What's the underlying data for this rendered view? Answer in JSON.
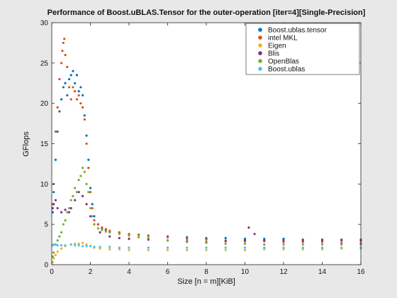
{
  "chart_data": {
    "type": "scatter",
    "title": "Performance of Boost.uBLAS.Tensor for the outer-operation [iter=4][Single-Precision]",
    "xlabel": "Size [n = m][KiB]",
    "ylabel": "GFlops",
    "xlim": [
      0,
      16
    ],
    "ylim": [
      0,
      30
    ],
    "xticks": [
      0,
      2,
      4,
      6,
      8,
      10,
      12,
      14,
      16
    ],
    "yticks": [
      0,
      5,
      10,
      15,
      20,
      25,
      30
    ],
    "grid": false,
    "legend_position": "top-right",
    "series": [
      {
        "name": "Boost.ublas.tensor",
        "color": "#0072bd",
        "x": [
          0.05,
          0.1,
          0.2,
          0.3,
          0.4,
          0.5,
          0.6,
          0.7,
          0.8,
          0.9,
          1.0,
          1.1,
          1.2,
          1.3,
          1.4,
          1.5,
          1.6,
          1.7,
          1.8,
          1.9,
          2.0,
          2.1,
          2.2,
          2.4,
          2.6,
          2.8,
          3.0,
          3.5,
          4.0,
          4.5,
          5.0,
          6.0,
          7.0,
          8.0,
          9.0,
          10.0,
          11.0,
          12.0,
          13.0,
          14.0,
          15.0,
          16.0
        ],
        "y": [
          6.5,
          9.0,
          13.0,
          16.5,
          19.0,
          20.5,
          22.0,
          22.5,
          21.0,
          23.0,
          23.5,
          24.0,
          22.5,
          23.5,
          21.5,
          22.0,
          21.0,
          18.5,
          16.0,
          13.0,
          9.5,
          7.5,
          6.0,
          5.0,
          4.5,
          4.3,
          4.1,
          3.9,
          3.8,
          3.7,
          3.6,
          3.5,
          3.4,
          3.3,
          3.3,
          3.2,
          3.2,
          3.2,
          3.1,
          3.1,
          3.1,
          3.1
        ]
      },
      {
        "name": "intel MKL",
        "color": "#d95319",
        "x": [
          0.05,
          0.1,
          0.2,
          0.3,
          0.4,
          0.5,
          0.55,
          0.6,
          0.65,
          0.7,
          0.8,
          0.9,
          1.0,
          1.1,
          1.2,
          1.3,
          1.4,
          1.5,
          1.6,
          1.7,
          1.8,
          1.9,
          2.0,
          2.1,
          2.2,
          2.4,
          2.6,
          2.8,
          3.0,
          3.5,
          4.0,
          4.5,
          5.0,
          6.0,
          7.0,
          8.0,
          9.0,
          10.0,
          11.0,
          12.0,
          13.0,
          14.0,
          15.0,
          16.0
        ],
        "y": [
          7.5,
          10.0,
          16.5,
          19.5,
          23.0,
          25.0,
          26.5,
          27.5,
          28.0,
          26.0,
          24.5,
          22.0,
          20.5,
          22.0,
          21.5,
          20.5,
          21.0,
          20.0,
          19.5,
          18.0,
          15.0,
          12.0,
          9.0,
          7.0,
          5.5,
          5.0,
          4.6,
          4.4,
          4.2,
          4.0,
          3.8,
          3.7,
          3.6,
          3.4,
          3.2,
          3.1,
          3.0,
          2.9,
          2.9,
          2.8,
          2.8,
          2.8,
          2.7,
          2.7
        ]
      },
      {
        "name": "Eigen",
        "color": "#edb120",
        "x": [
          0.05,
          0.1,
          0.2,
          0.3,
          0.5,
          0.7,
          1.0,
          1.2,
          1.4,
          1.6,
          1.8,
          2.0,
          2.2,
          2.5,
          3.0,
          3.5,
          4.0,
          5.0,
          6.0,
          7.0,
          8.0,
          9.0,
          10.0,
          11.0,
          12.0,
          13.0,
          14.0,
          15.0,
          16.0
        ],
        "y": [
          0.3,
          0.8,
          1.2,
          1.6,
          2.0,
          2.3,
          2.5,
          2.6,
          2.6,
          2.7,
          2.5,
          2.3,
          2.1,
          2.0,
          1.9,
          1.9,
          1.8,
          1.8,
          1.8,
          1.8,
          1.8,
          1.8,
          1.8,
          1.9,
          1.9,
          1.9,
          1.9,
          2.0,
          2.0
        ]
      },
      {
        "name": "Blis",
        "color": "#7e2f8e",
        "x": [
          0.05,
          0.1,
          0.2,
          0.3,
          0.5,
          0.7,
          0.9,
          1.0,
          1.2,
          1.4,
          1.6,
          1.8,
          2.0,
          2.2,
          2.5,
          3.0,
          3.5,
          4.0,
          5.0,
          6.0,
          7.0,
          8.0,
          9.0,
          10.0,
          10.2,
          10.5,
          11.0,
          12.0,
          13.0,
          14.0,
          15.0,
          16.0
        ],
        "y": [
          7.0,
          7.5,
          8.0,
          7.0,
          6.5,
          6.8,
          6.5,
          7.0,
          8.0,
          9.0,
          8.5,
          7.5,
          6.0,
          5.0,
          4.0,
          3.5,
          3.3,
          3.2,
          3.1,
          3.0,
          2.9,
          2.8,
          2.9,
          3.0,
          4.6,
          3.8,
          3.0,
          3.0,
          3.0,
          3.0,
          3.0,
          3.0
        ]
      },
      {
        "name": "OpenBlas",
        "color": "#77ac30",
        "x": [
          0.05,
          0.1,
          0.2,
          0.3,
          0.4,
          0.5,
          0.6,
          0.7,
          0.8,
          0.9,
          1.0,
          1.1,
          1.2,
          1.3,
          1.4,
          1.5,
          1.6,
          1.7,
          1.8,
          1.9,
          2.0,
          2.1,
          2.2,
          2.4,
          2.6,
          2.8,
          3.0,
          3.5,
          4.0,
          4.5,
          5.0,
          6.0,
          7.0,
          8.0,
          9.0,
          10.0,
          11.0,
          12.0,
          13.0,
          14.0,
          15.0,
          16.0
        ],
        "y": [
          1.0,
          1.5,
          2.5,
          3.0,
          3.5,
          4.0,
          5.0,
          5.5,
          6.5,
          7.0,
          8.0,
          8.5,
          9.5,
          9.0,
          10.5,
          11.0,
          12.0,
          11.5,
          10.0,
          9.0,
          7.0,
          6.0,
          5.0,
          4.5,
          4.3,
          4.1,
          4.0,
          3.8,
          3.6,
          3.4,
          3.3,
          3.0,
          2.8,
          2.7,
          2.6,
          2.6,
          2.5,
          2.5,
          2.5,
          2.5,
          2.5,
          2.5
        ]
      },
      {
        "name": "Boost.ublas",
        "color": "#4dbeee",
        "x": [
          0.05,
          0.1,
          0.2,
          0.3,
          0.5,
          0.7,
          1.0,
          1.2,
          1.4,
          1.6,
          1.8,
          2.0,
          2.2,
          2.5,
          3.0,
          3.5,
          4.0,
          5.0,
          6.0,
          7.0,
          8.0,
          9.0,
          10.0,
          11.0,
          12.0,
          13.0,
          14.0,
          15.0,
          16.0
        ],
        "y": [
          2.4,
          2.5,
          2.5,
          2.4,
          2.4,
          2.4,
          2.5,
          2.4,
          2.4,
          2.3,
          2.3,
          2.3,
          2.2,
          2.2,
          2.2,
          2.1,
          2.1,
          2.1,
          2.1,
          2.1,
          2.1,
          2.1,
          2.1,
          2.1,
          2.1,
          2.1,
          2.1,
          2.1,
          2.1
        ]
      }
    ]
  }
}
